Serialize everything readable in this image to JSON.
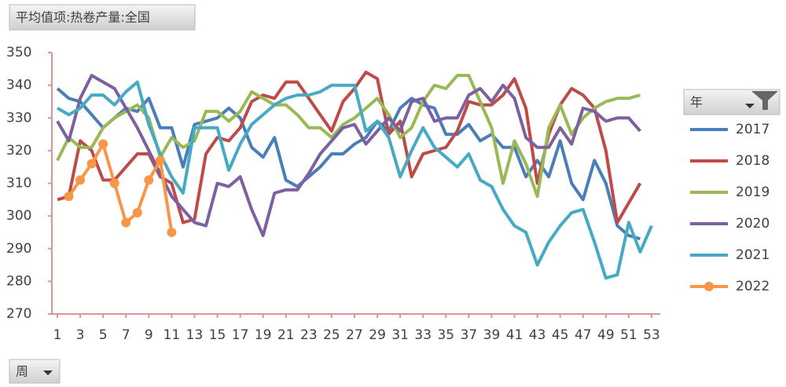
{
  "chart_data": {
    "type": "line",
    "title": "平均值项:热卷产量:全国",
    "legend_title": "年",
    "x_field": "周",
    "x": [
      1,
      2,
      3,
      4,
      5,
      6,
      7,
      8,
      9,
      10,
      11,
      12,
      13,
      14,
      15,
      16,
      17,
      18,
      19,
      20,
      21,
      22,
      23,
      24,
      25,
      26,
      27,
      28,
      29,
      30,
      31,
      32,
      33,
      34,
      35,
      36,
      37,
      38,
      39,
      40,
      41,
      42,
      43,
      44,
      45,
      46,
      47,
      48,
      49,
      50,
      51,
      52,
      53
    ],
    "xlim": [
      1,
      53
    ],
    "xticks": [
      1,
      3,
      5,
      7,
      9,
      11,
      13,
      15,
      17,
      19,
      21,
      23,
      25,
      27,
      29,
      31,
      33,
      35,
      37,
      39,
      41,
      43,
      45,
      47,
      49,
      51,
      53
    ],
    "ylim": [
      270,
      350
    ],
    "yticks": [
      270,
      280,
      290,
      300,
      310,
      320,
      330,
      340,
      350
    ],
    "grid": false,
    "legend": "right",
    "series": [
      {
        "name": "2017",
        "color": "#4a7ebb",
        "values": [
          339,
          336,
          335,
          331,
          327,
          330,
          333,
          332,
          336,
          327,
          327,
          315,
          328,
          329,
          330,
          333,
          330,
          321,
          318,
          324,
          311,
          309,
          312,
          315,
          319,
          319,
          322,
          324,
          329,
          326,
          333,
          336,
          334,
          333,
          325,
          325,
          328,
          323,
          325,
          321,
          321,
          312,
          317,
          312,
          323,
          310,
          305,
          317,
          310,
          297,
          294,
          293,
          null
        ]
      },
      {
        "name": "2018",
        "color": "#be4b48",
        "values": [
          305,
          306,
          323,
          320,
          311,
          311,
          315,
          319,
          319,
          312,
          310,
          298,
          299,
          319,
          324,
          323,
          327,
          335,
          337,
          336,
          341,
          341,
          336,
          331,
          326,
          335,
          339,
          344,
          342,
          325,
          329,
          312,
          319,
          320,
          321,
          326,
          335,
          334,
          334,
          337,
          342,
          333,
          310,
          325,
          334,
          339,
          337,
          333,
          320,
          298,
          304,
          310,
          null
        ]
      },
      {
        "name": "2019",
        "color": "#98b954",
        "values": [
          317,
          324,
          321,
          321,
          327,
          330,
          332,
          334,
          330,
          318,
          324,
          321,
          323,
          332,
          332,
          329,
          332,
          338,
          336,
          334,
          334,
          331,
          327,
          327,
          324,
          328,
          330,
          333,
          336,
          331,
          324,
          327,
          335,
          340,
          339,
          343,
          343,
          335,
          327,
          310,
          323,
          316,
          306,
          327,
          334,
          325,
          330,
          333,
          335,
          336,
          336,
          337,
          null
        ]
      },
      {
        "name": "2020",
        "color": "#7d60a0",
        "values": [
          329,
          323,
          336,
          343,
          341,
          339,
          333,
          327,
          320,
          313,
          306,
          302,
          298,
          297,
          310,
          309,
          312,
          302,
          294,
          307,
          308,
          308,
          313,
          319,
          323,
          327,
          328,
          322,
          326,
          330,
          326,
          335,
          336,
          329,
          330,
          330,
          337,
          339,
          335,
          340,
          336,
          324,
          321,
          321,
          327,
          322,
          333,
          332,
          329,
          330,
          330,
          326,
          null
        ]
      },
      {
        "name": "2021",
        "color": "#46aac5",
        "values": [
          333,
          331,
          333,
          337,
          337,
          334,
          338,
          341,
          328,
          319,
          312,
          307,
          327,
          327,
          327,
          314,
          322,
          328,
          331,
          334,
          336,
          337,
          337,
          338,
          340,
          340,
          340,
          326,
          329,
          324,
          312,
          320,
          327,
          321,
          318,
          315,
          319,
          311,
          309,
          302,
          297,
          295,
          285,
          292,
          297,
          301,
          302,
          292,
          281,
          282,
          298,
          289,
          297
        ]
      },
      {
        "name": "2022",
        "color": "#f79646",
        "markers": true,
        "values": [
          null,
          306,
          311,
          316,
          322,
          310,
          298,
          301,
          311,
          317,
          295,
          null,
          null,
          null,
          null,
          null,
          null,
          null,
          null,
          null,
          null,
          null,
          null,
          null,
          null,
          null,
          null,
          null,
          null,
          null,
          null,
          null,
          null,
          null,
          null,
          null,
          null,
          null,
          null,
          null,
          null,
          null,
          null,
          null,
          null,
          null,
          null,
          null,
          null,
          null,
          null,
          null,
          null
        ]
      }
    ]
  }
}
